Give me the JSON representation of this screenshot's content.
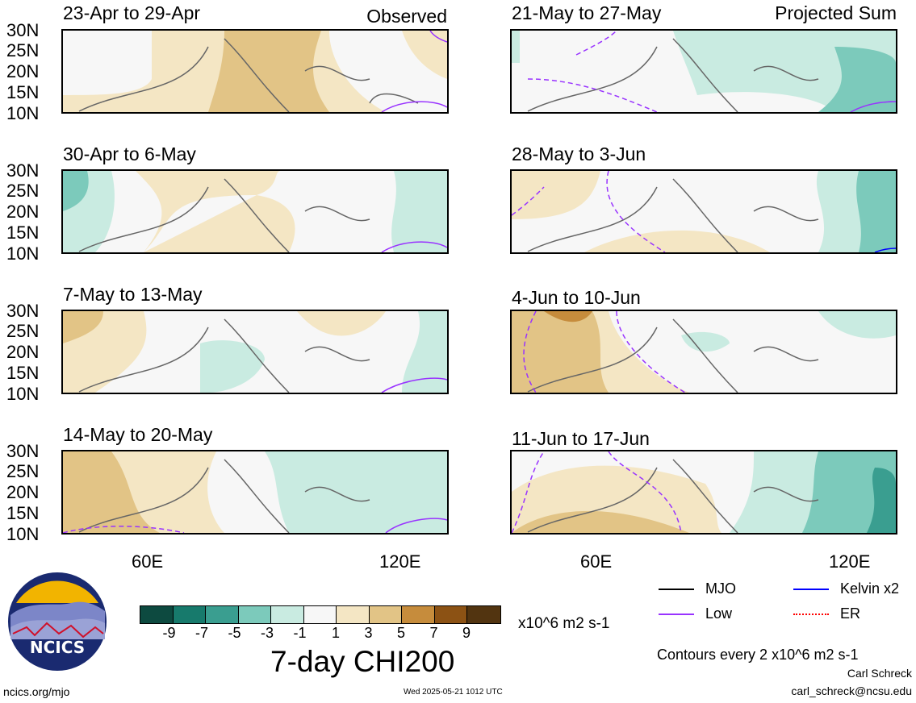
{
  "panels_left": [
    {
      "title": "23-Apr to 29-Apr"
    },
    {
      "title": "30-Apr to 6-May"
    },
    {
      "title": "7-May to 13-May"
    },
    {
      "title": "14-May to 20-May"
    }
  ],
  "panels_right": [
    {
      "title": "21-May to 27-May"
    },
    {
      "title": "28-May to 3-Jun"
    },
    {
      "title": "4-Jun to 10-Jun"
    },
    {
      "title": "11-Jun to 17-Jun"
    }
  ],
  "headers": {
    "left": "Observed",
    "right": "Projected Sum"
  },
  "lat_labels": [
    "30N",
    "25N",
    "20N",
    "15N",
    "10N"
  ],
  "lon_labels": [
    "60E",
    "120E"
  ],
  "colorbar": {
    "colors": [
      "#0d4a40",
      "#177a6c",
      "#3a9e90",
      "#7ccabb",
      "#c9ebe1",
      "#f7f7f7",
      "#f4e6c4",
      "#e2c486",
      "#c68c3c",
      "#8c5214",
      "#523410"
    ],
    "ticks": [
      "-9",
      "-7",
      "-5",
      "-3",
      "-1",
      "1",
      "3",
      "5",
      "7",
      "9"
    ],
    "units": "x10^6 m2 s-1",
    "title": "7-day CHI200"
  },
  "legend": {
    "mjo": "MJO",
    "low": "Low",
    "kelvin": "Kelvin x2",
    "er": "ER",
    "colors": {
      "mjo": "#000000",
      "low": "#9933ff",
      "kelvin": "#0000ff",
      "er": "#ff0000"
    }
  },
  "contour_note": "Contours every 2 x10^6 m2 s-1",
  "author": "Carl Schreck",
  "email": "carl_schreck@ncsu.edu",
  "site": "ncics.org/mjo",
  "timestamp": "Wed 2025-05-21 1012 UTC",
  "logo_text": "NCICS"
}
